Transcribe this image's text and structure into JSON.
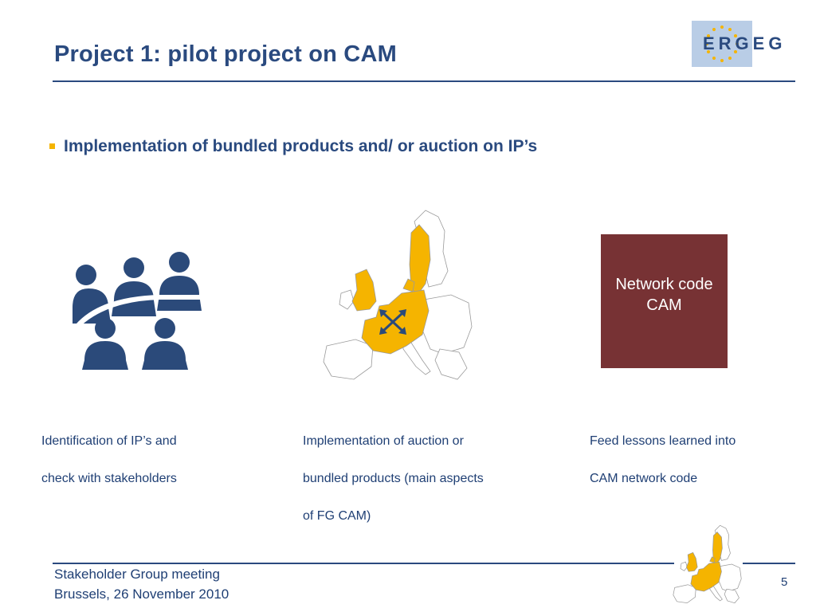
{
  "slide": {
    "title": "Project 1: pilot project on CAM",
    "logo": {
      "text": "ERGEG",
      "stars_color": "#f5b400",
      "background": "#b9cde6"
    },
    "bullet": "Implementation of bundled products and/ or auction on IP’s",
    "network_box": {
      "line1": "Network code",
      "line2": "CAM",
      "color": "#773234"
    },
    "captions": [
      {
        "lines": [
          "Identification of IP’s and",
          "check with stakeholders"
        ]
      },
      {
        "lines": [
          "Implementation of auction or",
          "bundled products (main aspects",
          "of FG CAM)"
        ]
      },
      {
        "lines": [
          "Feed lessons learned into",
          "CAM network code"
        ]
      }
    ],
    "footer": {
      "line1": "Stakeholder Group meeting",
      "line2": "Brussels, 26 November 2010"
    },
    "page_number": "5",
    "icons": [
      "people-group-icon",
      "europe-map-icon",
      "double-arrow-icon"
    ],
    "colors": {
      "title": "#2a4a7f",
      "highlight": "#f5b400",
      "people": "#2b4a7a"
    }
  }
}
